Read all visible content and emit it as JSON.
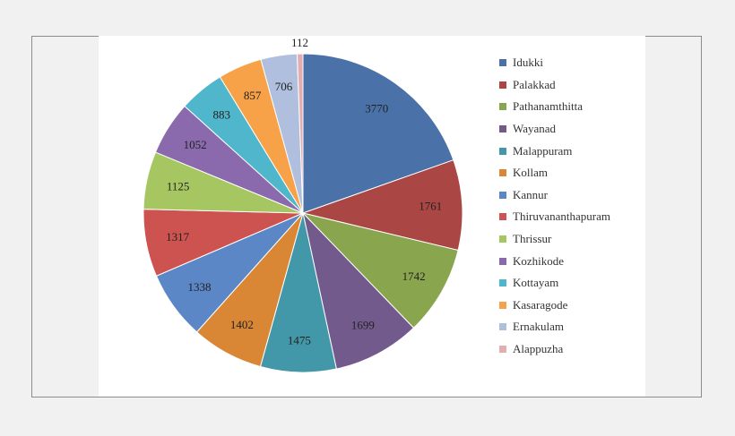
{
  "chart_data": {
    "type": "pie",
    "categories": [
      "Idukki",
      "Palakkad",
      "Pathanamthitta",
      "Wayanad",
      "Malappuram",
      "Kollam",
      "Kannur",
      "Thiruvananthapuram",
      "Thrissur",
      "Kozhikode",
      "Kottayam",
      "Kasaragode",
      "Ernakulam",
      "Alappuzha"
    ],
    "values": [
      3770,
      1761,
      1742,
      1699,
      1475,
      1402,
      1338,
      1317,
      1125,
      1052,
      883,
      857,
      706,
      112
    ],
    "colors": [
      "#4a72a8",
      "#aa4643",
      "#89a54e",
      "#735a8d",
      "#4297a9",
      "#d98735",
      "#5b87c6",
      "#cc5350",
      "#a5c660",
      "#8a6aad",
      "#4fb6cb",
      "#f7a148",
      "#b0bfde",
      "#e3aeb0"
    ],
    "labels_shown": [
      "3770",
      "1761",
      "1742",
      "1699",
      "1475",
      "1402",
      "1338",
      "1317",
      "1125",
      "1052",
      "883",
      "857",
      "706",
      "112"
    ],
    "legend": "right",
    "start_angle": "12 o'clock",
    "direction": "clockwise"
  }
}
